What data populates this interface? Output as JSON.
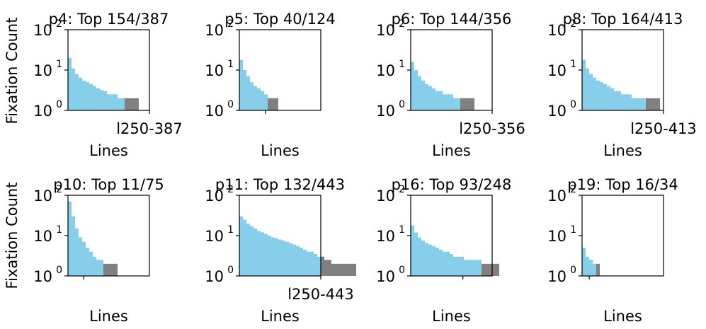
{
  "figure": {
    "ylabel": "Fixation Count",
    "colors": {
      "top": "#87CEEB",
      "rest": "#808080",
      "axis": "#000000"
    }
  },
  "chart_data": [
    {
      "type": "bar",
      "title": "p4: Top 154/387",
      "xlabel": "Lines",
      "ylabel": "Fixation Count",
      "yscale": "log",
      "ylim": [
        1,
        100
      ],
      "yticks": [
        "10",
        "10",
        "10"
      ],
      "ytick_exponents": [
        "0",
        "1",
        "2"
      ],
      "xlim": [
        0,
        387
      ],
      "xtick_label": "l250-387",
      "xtick_value": 387,
      "top_n": 154,
      "values": [
        20,
        11,
        8,
        6.5,
        5.5,
        5,
        4.5,
        4,
        3.5,
        3.2,
        3,
        2.5,
        2.5,
        2.5,
        2,
        2,
        2,
        2,
        2,
        2
      ]
    },
    {
      "type": "bar",
      "title": "p5: Top 40/124",
      "xlabel": "Lines",
      "ylabel": "",
      "yscale": "log",
      "ylim": [
        1,
        100
      ],
      "yticks": [
        "10",
        "10",
        "10"
      ],
      "ytick_exponents": [
        "0",
        "1",
        "2"
      ],
      "xlim": [
        0,
        387
      ],
      "xtick_label": "",
      "xtick_value": 124,
      "top_n": 40,
      "values": [
        18,
        10,
        7,
        5,
        4,
        3.5,
        3,
        2.5,
        2,
        2,
        2
      ]
    },
    {
      "type": "bar",
      "title": "p6: Top 144/356",
      "xlabel": "Lines",
      "ylabel": "",
      "yscale": "log",
      "ylim": [
        1,
        100
      ],
      "yticks": [
        "10",
        "10",
        "10"
      ],
      "ytick_exponents": [
        "0",
        "1",
        "2"
      ],
      "xlim": [
        0,
        356
      ],
      "xtick_label": "l250-356",
      "xtick_value": 356,
      "top_n": 144,
      "values": [
        16,
        10,
        7,
        5.5,
        4.5,
        4,
        3.5,
        3,
        3,
        2.5,
        2.5,
        2.5,
        2,
        2,
        2,
        2,
        2,
        2
      ]
    },
    {
      "type": "bar",
      "title": "p8: Top 164/413",
      "xlabel": "Lines",
      "ylabel": "",
      "yscale": "log",
      "ylim": [
        1,
        100
      ],
      "yticks": [
        "10",
        "10",
        "10"
      ],
      "ytick_exponents": [
        "0",
        "1",
        "2"
      ],
      "xlim": [
        0,
        413
      ],
      "xtick_label": "l250-413",
      "xtick_value": 413,
      "top_n": 164,
      "values": [
        18,
        11,
        8,
        6.5,
        5.5,
        5,
        4.5,
        4,
        3.5,
        3,
        3,
        2.5,
        2.5,
        2.5,
        2,
        2,
        2,
        2,
        2,
        2,
        2,
        2
      ]
    },
    {
      "type": "bar",
      "title": "p10: Top 11/75",
      "xlabel": "Lines",
      "ylabel": "Fixation Count",
      "yscale": "log",
      "ylim": [
        1,
        100
      ],
      "yticks": [
        "10",
        "10",
        "10"
      ],
      "ytick_exponents": [
        "0",
        "1",
        "2"
      ],
      "xlim": [
        0,
        387
      ],
      "xtick_label": "",
      "xtick_value": 75,
      "top_n": 11,
      "values": [
        70,
        30,
        15,
        9,
        7,
        5,
        4,
        3,
        2.5,
        2.5,
        2,
        2,
        2,
        2
      ]
    },
    {
      "type": "bar",
      "title": "p11: Top 132/443",
      "xlabel": "Lines",
      "ylabel": "",
      "yscale": "log",
      "ylim": [
        1,
        100
      ],
      "yticks": [
        "10",
        "10",
        "10"
      ],
      "ytick_exponents": [
        "0",
        "1",
        "2"
      ],
      "xlim": [
        0,
        443
      ],
      "xtick_label": "l250-443",
      "xtick_value": 443,
      "top_n": 132,
      "values": [
        30,
        25,
        20,
        17,
        15,
        13,
        12,
        11,
        10,
        9,
        8.5,
        8,
        7.5,
        7,
        6.5,
        6,
        5.5,
        5,
        4.5,
        4,
        4,
        3.5,
        3,
        3,
        2.5,
        2.5,
        2,
        2,
        2,
        2,
        2,
        2,
        2
      ]
    },
    {
      "type": "bar",
      "title": "p16: Top 93/248",
      "xlabel": "Lines",
      "ylabel": "",
      "yscale": "log",
      "ylim": [
        1,
        100
      ],
      "yticks": [
        "10",
        "10",
        "10"
      ],
      "ytick_exponents": [
        "0",
        "1",
        "2"
      ],
      "xlim": [
        0,
        387
      ],
      "xtick_label": "",
      "xtick_value": 248,
      "top_n": 93,
      "values": [
        18,
        12,
        9,
        7.5,
        6.5,
        6,
        5.5,
        5,
        4.5,
        4,
        4,
        3.5,
        3,
        3,
        3,
        2.5,
        2.5,
        2.5,
        2.5,
        2.5,
        2,
        2,
        2,
        2,
        2
      ]
    },
    {
      "type": "bar",
      "title": "p19: Top 16/34",
      "xlabel": "Lines",
      "ylabel": "",
      "yscale": "log",
      "ylim": [
        1,
        100
      ],
      "yticks": [
        "10",
        "10",
        "10"
      ],
      "ytick_exponents": [
        "0",
        "1",
        "2"
      ],
      "xlim": [
        0,
        387
      ],
      "xtick_label": "",
      "xtick_value": 34,
      "top_n": 16,
      "values": [
        5,
        3,
        2.5,
        2,
        2
      ]
    }
  ]
}
